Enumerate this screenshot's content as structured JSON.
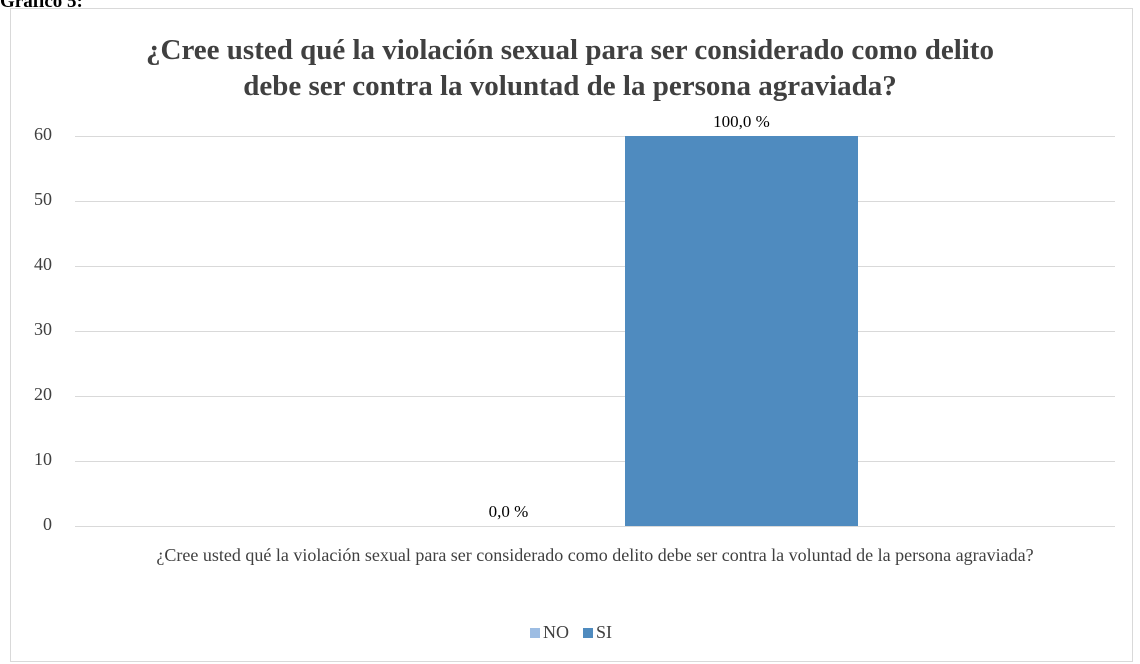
{
  "caption": "Gráfico 5:",
  "chart_data": {
    "type": "bar",
    "title": "¿Cree usted qué la violación sexual para ser considerado como delito debe ser contra la voluntad de la persona agraviada?",
    "categories": [
      "¿Cree usted qué la violación sexual para ser considerado como delito debe ser contra la voluntad de la persona agraviada?"
    ],
    "series": [
      {
        "name": "NO",
        "color": "#9dbde3",
        "values": [
          0
        ],
        "value_labels": [
          "0,0 %"
        ]
      },
      {
        "name": "SI",
        "color": "#4f8bbf",
        "values": [
          60
        ],
        "value_labels": [
          "100,0 %"
        ]
      }
    ],
    "ylim": [
      0,
      60
    ],
    "yticks": [
      0,
      10,
      20,
      30,
      40,
      50,
      60
    ],
    "grid": true,
    "legend": "bottom"
  }
}
